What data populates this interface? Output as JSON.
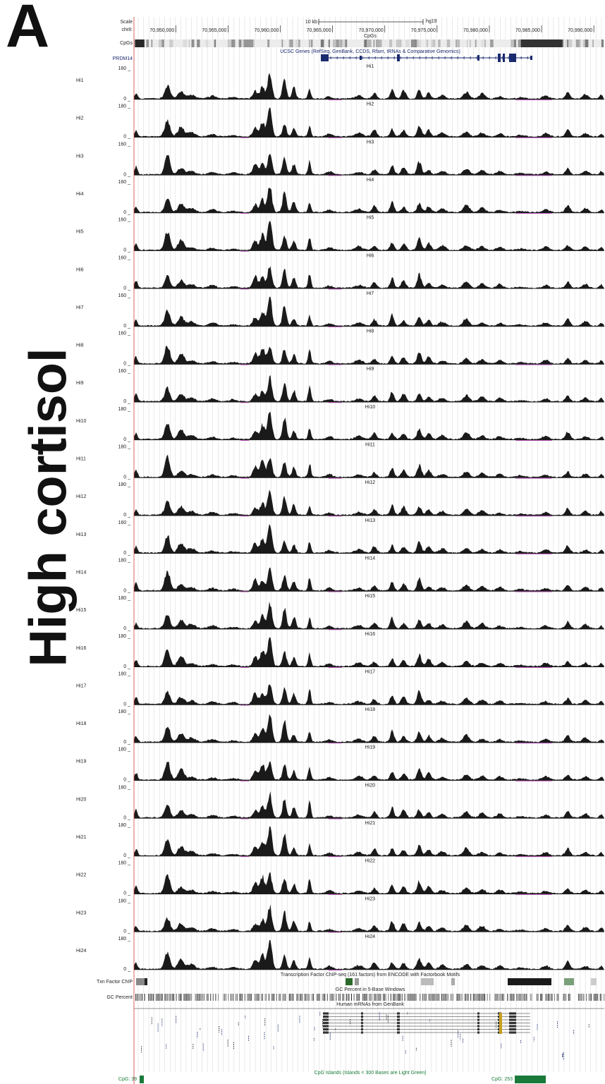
{
  "figure": {
    "panel_letter": "A",
    "side_title": "High cortisol"
  },
  "header": {
    "scale_label": "Scale",
    "chrom_label": "chr8:",
    "scale_bar_label": "10 kb",
    "assembly": "hg19",
    "cpgs_title": "CpGs",
    "cpgs_track_label": "CpGs"
  },
  "genes": {
    "title": "UCSC Genes (RefSeq, GenBank, CCDS, Rfam, tRNAs & Comparative Genomics)",
    "gene_label": "PRDM14"
  },
  "bottom_tracks": {
    "txn_title": "Transcription Factor ChIP-seq (161 factors) from ENCODE with Factorbook Motifs",
    "txn_label": "Txn Factor ChIP",
    "gc_title": "GC Percent in 5-Base Windows",
    "gc_label": "GC Percent",
    "mrna_title": "Human mRNAs from GenBank",
    "cpg_islands_title": "CpG Islands (Islands < 300 Bases are Light Green)",
    "cpg_left_label": "CpG: 39",
    "cpg_right_label": "CpG: 253"
  },
  "colors": {
    "signal": "#1a1a1a",
    "baseline_dip": "#b54fb5",
    "gene_blue": "#1a2a6e",
    "cpg_green": "#1a7a3a",
    "grid": "#c8c8c8",
    "left_border": "#d04040"
  },
  "chart_data": {
    "type": "area",
    "x_axis": {
      "chrom": "chr8",
      "ticks": [
        70950000,
        70955000,
        70960000,
        70965000,
        70970000,
        70975000,
        70980000,
        70985000,
        70990000
      ],
      "tick_labels": [
        "70,950,000",
        "70,955,000",
        "70,960,000",
        "70,965,000",
        "70,970,000",
        "70,975,000",
        "70,980,000",
        "70,985,000",
        "70,990,000"
      ],
      "range": [
        70946000,
        70991000
      ]
    },
    "peaks_relative": [
      {
        "x": 70946200,
        "h": 0.22,
        "w": 200
      },
      {
        "x": 70949200,
        "h": 0.55,
        "w": 350
      },
      {
        "x": 70950500,
        "h": 0.28,
        "w": 400
      },
      {
        "x": 70951500,
        "h": 0.12,
        "w": 500
      },
      {
        "x": 70953500,
        "h": 0.08,
        "w": 500
      },
      {
        "x": 70955500,
        "h": 0.05,
        "w": 500
      },
      {
        "x": 70957600,
        "h": 0.32,
        "w": 300
      },
      {
        "x": 70958300,
        "h": 0.45,
        "w": 300
      },
      {
        "x": 70959000,
        "h": 0.85,
        "w": 280
      },
      {
        "x": 70960400,
        "h": 0.58,
        "w": 260
      },
      {
        "x": 70961300,
        "h": 0.32,
        "w": 250
      },
      {
        "x": 70962800,
        "h": 0.42,
        "w": 180
      },
      {
        "x": 70964700,
        "h": 0.08,
        "w": 400
      },
      {
        "x": 70967500,
        "h": 0.1,
        "w": 500
      },
      {
        "x": 70969000,
        "h": 0.18,
        "w": 300
      },
      {
        "x": 70970700,
        "h": 0.3,
        "w": 250
      },
      {
        "x": 70971800,
        "h": 0.22,
        "w": 300
      },
      {
        "x": 70973300,
        "h": 0.36,
        "w": 280
      },
      {
        "x": 70974200,
        "h": 0.2,
        "w": 300
      },
      {
        "x": 70975500,
        "h": 0.12,
        "w": 400
      },
      {
        "x": 70977800,
        "h": 0.2,
        "w": 400
      },
      {
        "x": 70979300,
        "h": 0.14,
        "w": 400
      },
      {
        "x": 70981000,
        "h": 0.1,
        "w": 400
      },
      {
        "x": 70983000,
        "h": 0.04,
        "w": 500
      },
      {
        "x": 70985400,
        "h": 0.1,
        "w": 400
      },
      {
        "x": 70987500,
        "h": 0.2,
        "w": 300
      },
      {
        "x": 70989200,
        "h": 0.12,
        "w": 350
      },
      {
        "x": 70990700,
        "h": 0.1,
        "w": 200
      }
    ],
    "dip_regions": [
      [
        70982500,
        70986000
      ],
      [
        70964600,
        70965900
      ],
      [
        70956200,
        70957000
      ]
    ],
    "series": [
      {
        "name": "Hi1",
        "ymax": 160,
        "ymin": 0
      },
      {
        "name": "Hi2",
        "ymax": 180,
        "ymin": 0
      },
      {
        "name": "Hi3",
        "ymax": 160,
        "ymin": 0
      },
      {
        "name": "Hi4",
        "ymax": 160,
        "ymin": 0
      },
      {
        "name": "Hi5",
        "ymax": 160,
        "ymin": 0
      },
      {
        "name": "Hi6",
        "ymax": 160,
        "ymin": 0
      },
      {
        "name": "Hi7",
        "ymax": 160,
        "ymin": 0
      },
      {
        "name": "Hi8",
        "ymax": 160,
        "ymin": 0
      },
      {
        "name": "Hi9",
        "ymax": 160,
        "ymin": 0
      },
      {
        "name": "Hi10",
        "ymax": 180,
        "ymin": 0
      },
      {
        "name": "Hi11",
        "ymax": 180,
        "ymin": 0
      },
      {
        "name": "Hi12",
        "ymax": 180,
        "ymin": 0
      },
      {
        "name": "Hi13",
        "ymax": 160,
        "ymin": 0
      },
      {
        "name": "Hi14",
        "ymax": 180,
        "ymin": 0
      },
      {
        "name": "Hi15",
        "ymax": 180,
        "ymin": 0
      },
      {
        "name": "Hi16",
        "ymax": 180,
        "ymin": 0
      },
      {
        "name": "Hi17",
        "ymax": 180,
        "ymin": 0
      },
      {
        "name": "Hi18",
        "ymax": 180,
        "ymin": 0
      },
      {
        "name": "Hi19",
        "ymax": 180,
        "ymin": 0
      },
      {
        "name": "Hi20",
        "ymax": 180,
        "ymin": 0
      },
      {
        "name": "Hi21",
        "ymax": 180,
        "ymin": 0
      },
      {
        "name": "Hi22",
        "ymax": 180,
        "ymin": 0
      },
      {
        "name": "Hi23",
        "ymax": 180,
        "ymin": 0
      },
      {
        "name": "Hi24",
        "ymax": 180,
        "ymin": 0
      }
    ]
  }
}
